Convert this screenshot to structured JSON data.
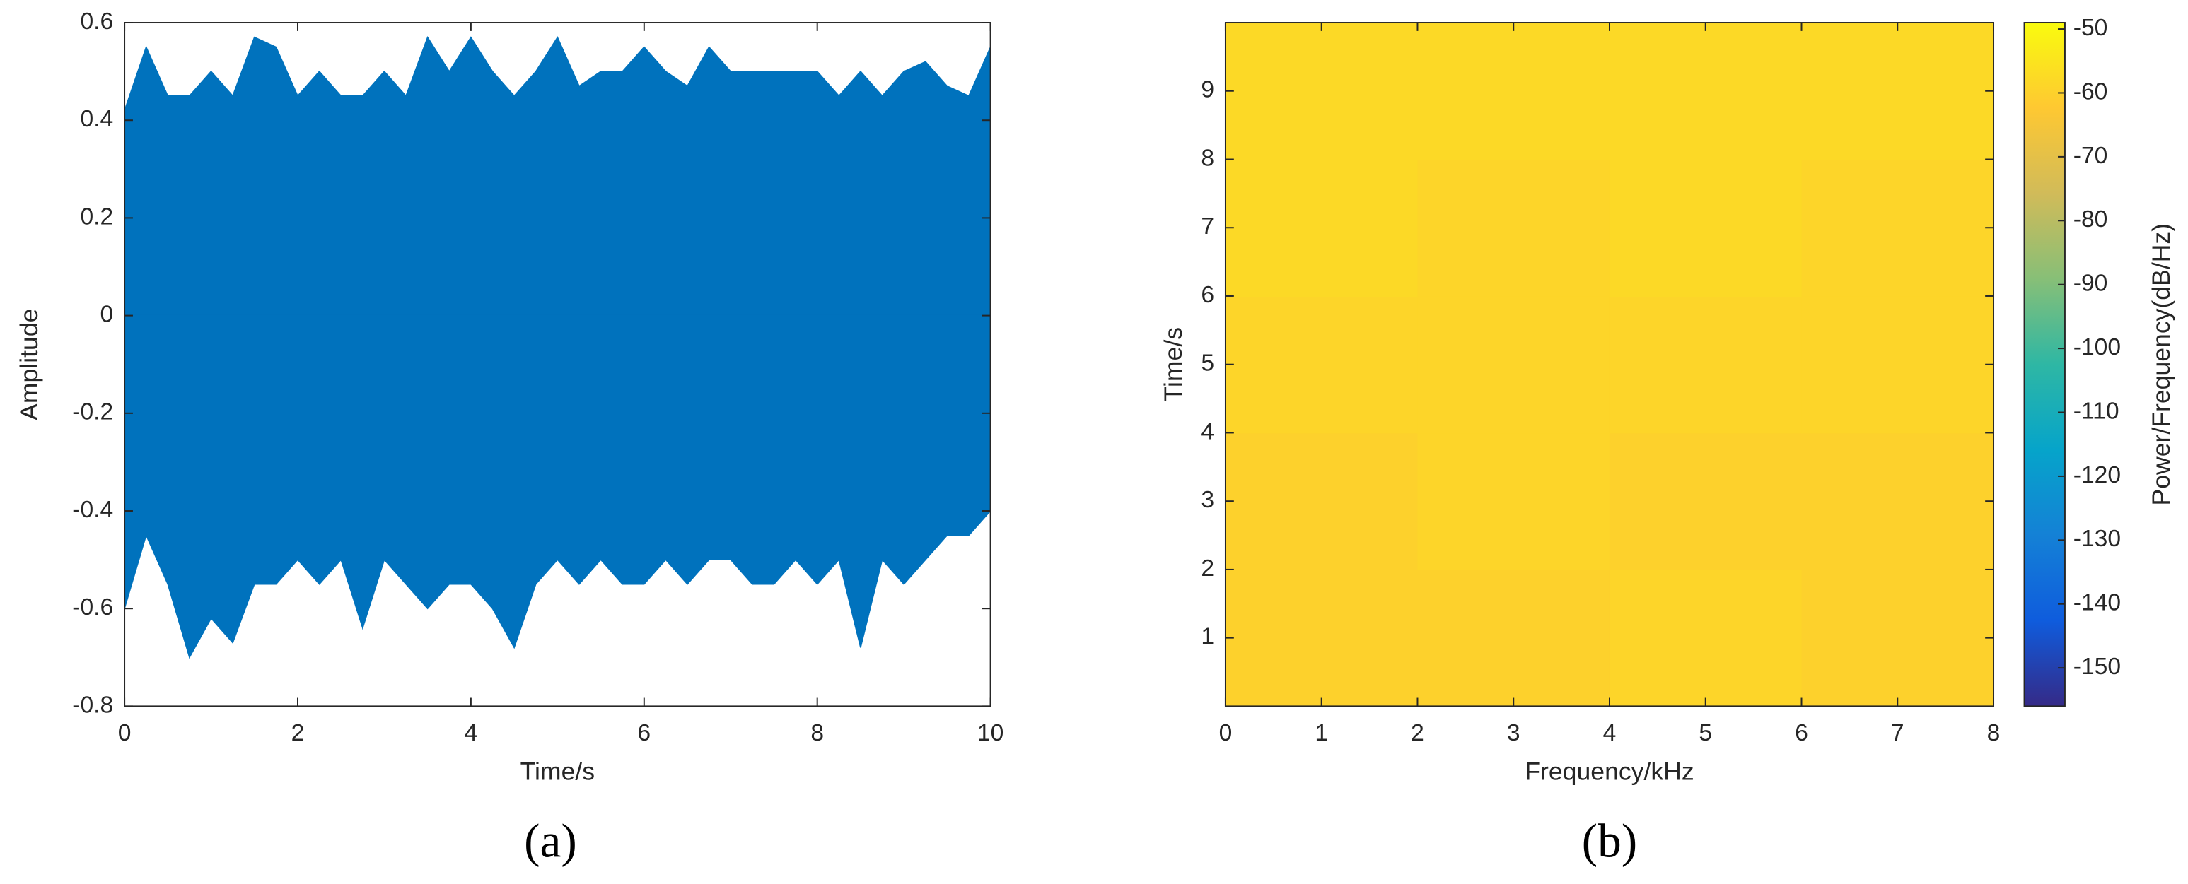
{
  "chart_data": [
    {
      "type": "envelope",
      "label": "(a)",
      "x_label": "Time/s",
      "y_label": "Amplitude",
      "color": "#0072bd",
      "x": [
        0,
        0.25,
        0.5,
        0.75,
        1,
        1.25,
        1.5,
        1.75,
        2,
        2.25,
        2.5,
        2.75,
        3,
        3.25,
        3.5,
        3.75,
        4,
        4.25,
        4.5,
        4.75,
        5,
        5.25,
        5.5,
        5.75,
        6,
        6.25,
        6.5,
        6.75,
        7,
        7.25,
        7.5,
        7.75,
        8,
        8.25,
        8.5,
        8.75,
        9,
        9.25,
        9.5,
        9.75,
        10
      ],
      "upper_envelope": [
        0.42,
        0.55,
        0.45,
        0.45,
        0.5,
        0.45,
        0.57,
        0.55,
        0.45,
        0.5,
        0.45,
        0.45,
        0.5,
        0.45,
        0.57,
        0.5,
        0.57,
        0.5,
        0.45,
        0.5,
        0.57,
        0.47,
        0.5,
        0.5,
        0.55,
        0.5,
        0.47,
        0.55,
        0.5,
        0.5,
        0.5,
        0.5,
        0.5,
        0.45,
        0.5,
        0.45,
        0.5,
        0.52,
        0.47,
        0.45,
        0.55
      ],
      "lower_envelope": [
        -0.6,
        -0.45,
        -0.55,
        -0.7,
        -0.62,
        -0.67,
        -0.55,
        -0.55,
        -0.5,
        -0.55,
        -0.5,
        -0.64,
        -0.5,
        -0.55,
        -0.6,
        -0.55,
        -0.55,
        -0.6,
        -0.68,
        -0.55,
        -0.5,
        -0.55,
        -0.5,
        -0.55,
        -0.55,
        -0.5,
        -0.55,
        -0.5,
        -0.5,
        -0.55,
        -0.55,
        -0.5,
        -0.55,
        -0.5,
        -0.68,
        -0.5,
        -0.55,
        -0.5,
        -0.45,
        -0.45,
        -0.4
      ],
      "xlim": [
        0,
        10
      ],
      "xticks": [
        0,
        2,
        4,
        6,
        8,
        10
      ],
      "ylim": [
        -0.8,
        0.6
      ],
      "yticks": [
        -0.8,
        -0.6,
        -0.4,
        -0.2,
        0,
        0.2,
        0.4,
        0.6
      ]
    },
    {
      "type": "heatmap",
      "label": "(b)",
      "x_label": "Frequency/kHz",
      "y_label": "Time/s",
      "colorbar_label": "Power/Frequency(dB/Hz)",
      "values": [
        [
          -60,
          -60,
          -59,
          -60
        ],
        [
          -60,
          -59,
          -60,
          -60
        ],
        [
          -59,
          -59,
          -59,
          -59
        ],
        [
          -58,
          -59,
          -58,
          -59
        ],
        [
          -58,
          -58,
          -58,
          -58
        ]
      ],
      "xlim": [
        0,
        8
      ],
      "xticks": [
        0,
        1,
        2,
        3,
        4,
        5,
        6,
        7,
        8
      ],
      "ylim": [
        0,
        10
      ],
      "yticks": [
        1,
        2,
        3,
        4,
        5,
        6,
        7,
        8,
        9
      ],
      "clim": [
        -156,
        -49
      ],
      "cticks": [
        -150,
        -140,
        -130,
        -120,
        -110,
        -100,
        -90,
        -80,
        -70,
        -60,
        -50
      ]
    }
  ]
}
